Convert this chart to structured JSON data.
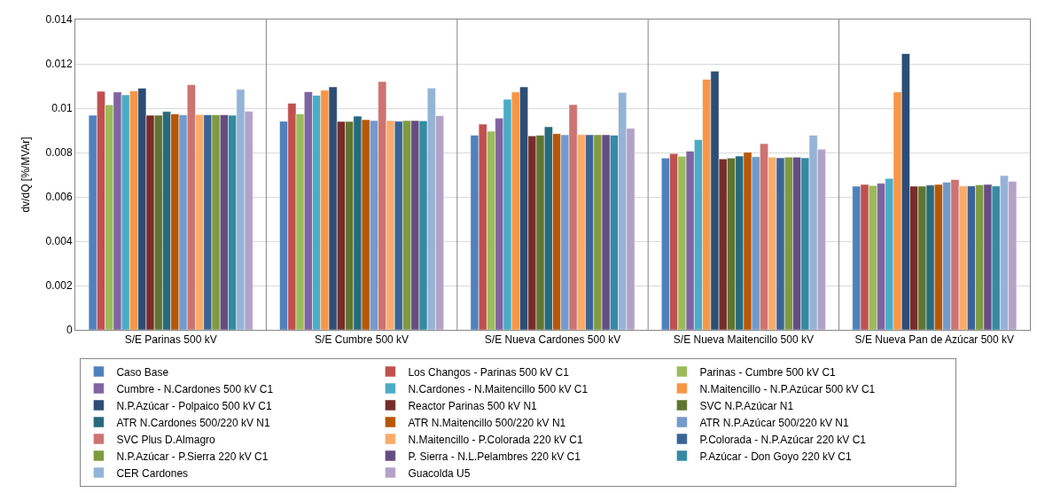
{
  "chart_data": {
    "type": "bar",
    "ylabel": "dv/dQ [%/MVAr]",
    "categories": [
      "S/E Parinas 500 kV",
      "S/E Cumbre 500 kV",
      "S/E Nueva Cardones 500 kV",
      "S/E Nueva Maitencillo 500 kV",
      "S/E Nueva Pan de Azúcar 500 kV"
    ],
    "ylim": [
      0,
      0.014
    ],
    "yticks": [
      0,
      0.002,
      0.004,
      0.006,
      0.008,
      0.01,
      0.012,
      0.014
    ],
    "grid": true,
    "legend": "bottom",
    "series": [
      {
        "name": "Caso Base",
        "color": "#4f81bd",
        "values": [
          0.00968,
          0.00941,
          0.00878,
          0.00775,
          0.00648
        ]
      },
      {
        "name": "Los Changos - Parinas 500 kV C1",
        "color": "#c0504d",
        "values": [
          0.01076,
          0.01022,
          0.00928,
          0.00795,
          0.00656
        ]
      },
      {
        "name": "Parinas - Cumbre 500 kV C1",
        "color": "#9bbb59",
        "values": [
          0.01015,
          0.00974,
          0.00896,
          0.00783,
          0.00651
        ]
      },
      {
        "name": "Cumbre - N.Cardones 500 kV C1",
        "color": "#8064a2",
        "values": [
          0.01073,
          0.01074,
          0.00955,
          0.00806,
          0.00661
        ]
      },
      {
        "name": "N.Cardones - N.Maitencillo 500 kV C1",
        "color": "#4bacc6",
        "values": [
          0.0106,
          0.01058,
          0.0104,
          0.00858,
          0.00683
        ]
      },
      {
        "name": "N.Maitencillo - N.P.Azúcar 500 kV C1",
        "color": "#f79646",
        "values": [
          0.01078,
          0.01081,
          0.01073,
          0.0113,
          0.01073
        ]
      },
      {
        "name": "N.P.Azúcar - Polpaico 500 kV C1",
        "color": "#2c4d75",
        "values": [
          0.0109,
          0.01096,
          0.01096,
          0.01167,
          0.01246
        ]
      },
      {
        "name": "Reactor Parinas 500 kV N1",
        "color": "#772c2a",
        "values": [
          0.00968,
          0.0094,
          0.00875,
          0.00771,
          0.00648
        ]
      },
      {
        "name": "SVC N.P.Azúcar N1",
        "color": "#5f7530",
        "values": [
          0.00968,
          0.0094,
          0.00878,
          0.00775,
          0.00648
        ]
      },
      {
        "name": "ATR N.Cardones 500/220 kV N1",
        "color": "#276a7c",
        "values": [
          0.00985,
          0.00964,
          0.00916,
          0.00784,
          0.00653
        ]
      },
      {
        "name": "ATR N.Maitencillo 500/220 kV N1",
        "color": "#b65708",
        "values": [
          0.00974,
          0.00948,
          0.00885,
          0.00801,
          0.00656
        ]
      },
      {
        "name": "ATR N.P.Azúcar 500/220 kV N1",
        "color": "#729aca",
        "values": [
          0.0097,
          0.00944,
          0.0088,
          0.00781,
          0.00666
        ]
      },
      {
        "name": "SVC Plus D.Almagro",
        "color": "#cd7371",
        "values": [
          0.01106,
          0.0112,
          0.01016,
          0.0084,
          0.00678
        ]
      },
      {
        "name": "N.Maitencillo - P.Colorada 220 kV C1",
        "color": "#f9ab6b",
        "values": [
          0.00971,
          0.00944,
          0.00881,
          0.00779,
          0.00649
        ]
      },
      {
        "name": "P.Colorada - N.P.Azúcar 220 kV C1",
        "color": "#3a6496",
        "values": [
          0.0097,
          0.00941,
          0.0088,
          0.00776,
          0.00649
        ]
      },
      {
        "name": "N.P.Azúcar - P.Sierra 220 kV C1",
        "color": "#7f9a41",
        "values": [
          0.0097,
          0.00944,
          0.0088,
          0.00779,
          0.00654
        ]
      },
      {
        "name": "P. Sierra - N.L.Pelambres 220 kV C1",
        "color": "#654d82",
        "values": [
          0.0097,
          0.00944,
          0.0088,
          0.00779,
          0.00656
        ]
      },
      {
        "name": "P.Azúcar - Don Goyo 220 kV C1",
        "color": "#358ba2",
        "values": [
          0.00968,
          0.00943,
          0.00878,
          0.00776,
          0.00649
        ]
      },
      {
        "name": "CER Cardones",
        "color": "#95b3d7",
        "values": [
          0.01085,
          0.01091,
          0.01071,
          0.00878,
          0.00696
        ]
      },
      {
        "name": "Guacolda U5",
        "color": "#b3a2c7",
        "values": [
          0.00986,
          0.00966,
          0.00909,
          0.00815,
          0.0067
        ]
      }
    ]
  }
}
